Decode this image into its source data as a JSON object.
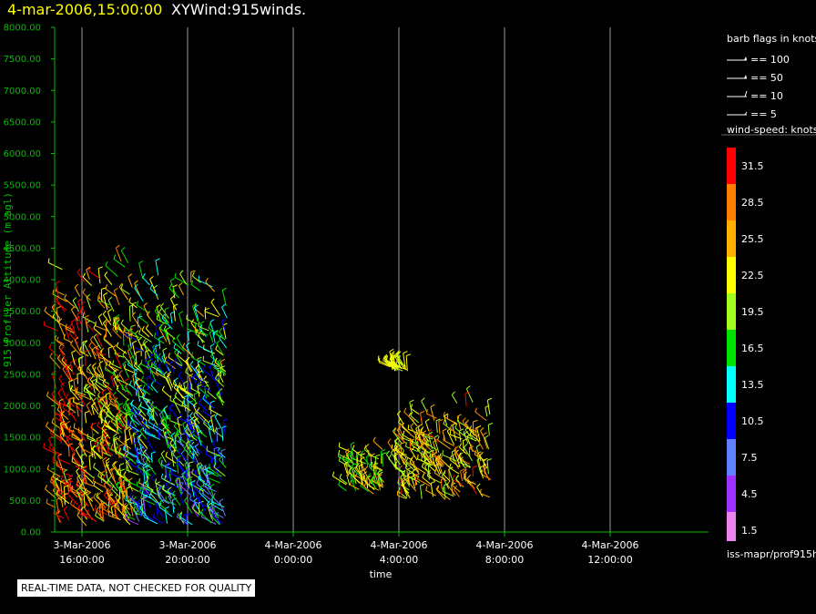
{
  "title": {
    "date": "4-mar-2006,15:00:00",
    "name": "XYWind:915winds."
  },
  "chart_data": {
    "type": "scatter",
    "xlabel": "time",
    "ylabel": "915 Profiler Altitude (m agl)",
    "ylim": [
      0,
      8000
    ],
    "y_ticks": [
      "0.00",
      "500.00",
      "1000.00",
      "1500.00",
      "2000.00",
      "2500.00",
      "3000.00",
      "3500.00",
      "4000.00",
      "4500.00",
      "5000.00",
      "5500.00",
      "6000.00",
      "6500.00",
      "7000.00",
      "7500.00",
      "8000.00"
    ],
    "x_ticks": [
      {
        "date": "3-Mar-2006",
        "time": "16:00:00"
      },
      {
        "date": "3-Mar-2006",
        "time": "20:00:00"
      },
      {
        "date": "4-Mar-2006",
        "time": "0:00:00"
      },
      {
        "date": "4-Mar-2006",
        "time": "4:00:00"
      },
      {
        "date": "4-Mar-2006",
        "time": "8:00:00"
      },
      {
        "date": "4-Mar-2006",
        "time": "12:00:00"
      }
    ],
    "grid": "vertical",
    "legend_placement": "right",
    "clusters": [
      {
        "t_start": "3-Mar-2006 15:00",
        "t_end": "3-Mar-2006 18:00",
        "alt_min": 100,
        "alt_max": 4500,
        "speed_range": [
          5,
          33
        ]
      },
      {
        "t_start": "3-Mar-2006 18:00",
        "t_end": "3-Mar-2006 21:30",
        "alt_min": 100,
        "alt_max": 4300,
        "speed_range": [
          3,
          31
        ]
      },
      {
        "t_start": "4-Mar-2006 2:00",
        "t_end": "4-Mar-2006 3:30",
        "alt_min": 600,
        "alt_max": 1400,
        "speed_range": [
          8,
          28
        ]
      },
      {
        "t_start": "4-Mar-2006 3:50",
        "t_end": "4-Mar-2006 7:30",
        "alt_min": 500,
        "alt_max": 2100,
        "speed_range": [
          10,
          33
        ]
      },
      {
        "t_start": "4-Mar-2006 3:40",
        "t_end": "4-Mar-2006 4:20",
        "alt_min": 2550,
        "alt_max": 2650,
        "speed_range": [
          18,
          24
        ]
      }
    ]
  },
  "legend": {
    "barb_title": "barb flags in knots",
    "barbs": [
      {
        "label": "== 100",
        "kind": "flag"
      },
      {
        "label": "== 50",
        "kind": "flag"
      },
      {
        "label": "== 10",
        "kind": "full"
      },
      {
        "label": "== 5",
        "kind": "half"
      }
    ],
    "speed_title": "wind-speed: knots",
    "scale": [
      {
        "label": "31.5",
        "color": "#ff0000"
      },
      {
        "label": "28.5",
        "color": "#ff8000"
      },
      {
        "label": "25.5",
        "color": "#ffb000"
      },
      {
        "label": "22.5",
        "color": "#ffff00"
      },
      {
        "label": "19.5",
        "color": "#a0ff20"
      },
      {
        "label": "16.5",
        "color": "#00e000"
      },
      {
        "label": "13.5",
        "color": "#00ffff"
      },
      {
        "label": "10.5",
        "color": "#0000ff"
      },
      {
        "label": "7.5",
        "color": "#6080ff"
      },
      {
        "label": "4.5",
        "color": "#a030ff"
      },
      {
        "label": "1.5",
        "color": "#ee82ee"
      }
    ],
    "source": "iss-mapr/prof915h"
  },
  "qc_note": "REAL-TIME DATA, NOT CHECKED FOR QUALITY",
  "colors": {
    "axis": "#00c000",
    "grid": "#9a9a9a",
    "title_date": "#ffff00"
  }
}
